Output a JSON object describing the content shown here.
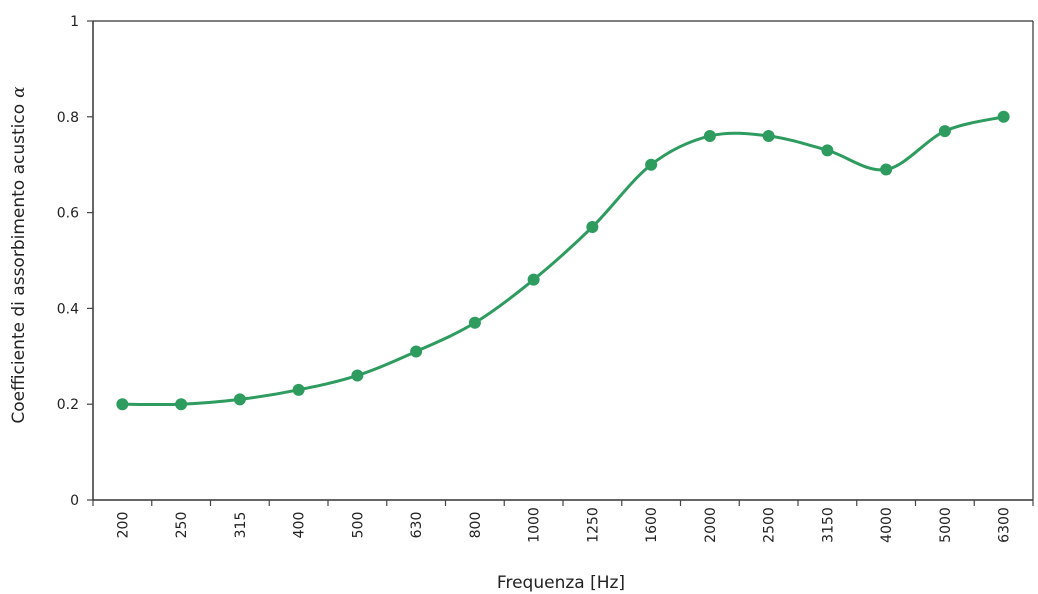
{
  "chart_data": {
    "type": "line",
    "title": "",
    "xlabel": "Frequenza [Hz]",
    "ylabel": "Coefficiente di assorbimento acustico",
    "ylabel_symbol": "α",
    "categories": [
      "200",
      "250",
      "315",
      "400",
      "500",
      "630",
      "800",
      "1000",
      "1250",
      "1600",
      "2000",
      "2500",
      "3150",
      "4000",
      "5000",
      "6300"
    ],
    "series": [
      {
        "values": [
          0.2,
          0.2,
          0.21,
          0.23,
          0.26,
          0.31,
          0.37,
          0.46,
          0.57,
          0.7,
          0.76,
          0.76,
          0.73,
          0.69,
          0.77,
          0.8
        ]
      }
    ],
    "ylim": [
      0,
      1
    ],
    "yticks": [
      "0",
      "0.2",
      "0.4",
      "0.6",
      "0.8",
      "1"
    ],
    "grid": false,
    "legend": "none",
    "line_color": "#2e9b5f",
    "marker_color": "#2e9b5f",
    "axis_color": "#444444",
    "frame_color": "#333333"
  }
}
